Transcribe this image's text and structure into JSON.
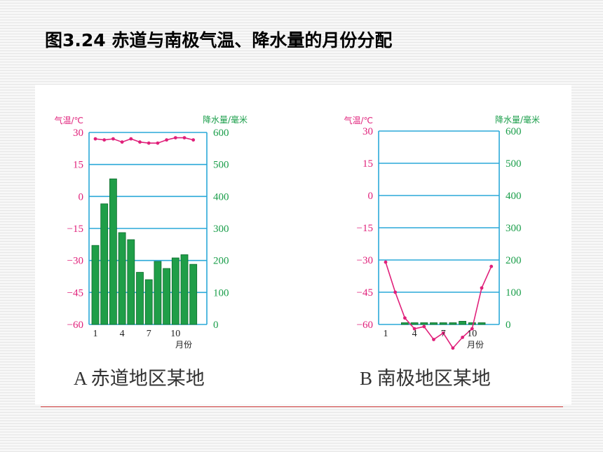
{
  "title": "图3.24  赤道与南极气温、降水量的月份分配",
  "colors": {
    "temperature": "#e0207a",
    "precipitation": "#1a9e4a",
    "grid": "#2aa8d8",
    "bar_fill": "#1f9e48"
  },
  "chart_data": [
    {
      "type": "bar+line",
      "caption": "A   赤道地区某地",
      "temp_axis_label": "气温/℃",
      "precip_axis_label": "降水量/毫米",
      "xlabel": "月份",
      "temp_ticks": [
        "30",
        "15",
        "0",
        "−15",
        "−30",
        "−45",
        "−60"
      ],
      "precip_ticks": [
        "600",
        "500",
        "400",
        "300",
        "200",
        "100",
        "0"
      ],
      "x_tick_labels": [
        "1",
        "4",
        "7",
        "10"
      ],
      "temp_ylim": [
        -60,
        30
      ],
      "precip_ylim": [
        0,
        600
      ],
      "months": [
        1,
        2,
        3,
        4,
        5,
        6,
        7,
        8,
        9,
        10,
        11,
        12
      ],
      "temperature": [
        27,
        26.5,
        27,
        25.5,
        27,
        25.5,
        25,
        25,
        26.5,
        27.5,
        27.5,
        26.5
      ],
      "precipitation": [
        247,
        377,
        455,
        287,
        265,
        163,
        140,
        197,
        175,
        208,
        218,
        188
      ]
    },
    {
      "type": "bar+line",
      "caption": "B   南极地区某地",
      "temp_axis_label": "气温/℃",
      "precip_axis_label": "降水量/毫米",
      "xlabel": "月份",
      "temp_ticks": [
        "30",
        "15",
        "0",
        "−15",
        "−30",
        "−45",
        "−60"
      ],
      "precip_ticks": [
        "600",
        "500",
        "400",
        "300",
        "200",
        "100",
        "0"
      ],
      "x_tick_labels": [
        "1",
        "4",
        "7",
        "10"
      ],
      "temp_ylim": [
        -60,
        30
      ],
      "precip_ylim": [
        0,
        600
      ],
      "months": [
        1,
        2,
        3,
        4,
        5,
        6,
        7,
        8,
        9,
        10,
        11,
        12
      ],
      "temperature": [
        -31,
        -45,
        -57,
        -62,
        -61,
        -67,
        -64,
        -71,
        -66,
        -62,
        -43,
        -33
      ],
      "precipitation": [
        null,
        null,
        0,
        2,
        2,
        2,
        2,
        2,
        10,
        2,
        2,
        null
      ]
    }
  ]
}
